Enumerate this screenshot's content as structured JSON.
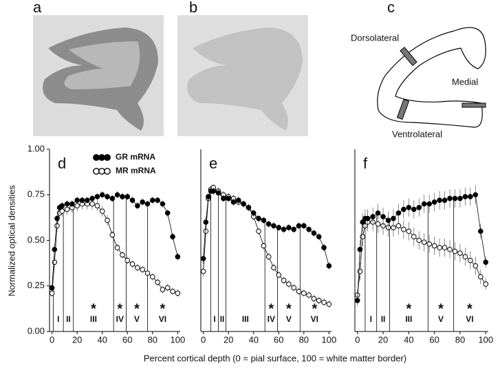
{
  "image_panels": [
    {
      "label": "a"
    },
    {
      "label": "b"
    }
  ],
  "diagram": {
    "label": "c",
    "regions": [
      "Dorsolateral",
      "Medial",
      "Ventrolateral"
    ]
  },
  "shared_axes": {
    "ylabel": "Normalized optical densities",
    "xlabel": "Percent cortical depth (0 = pial surface, 100 = white matter border)"
  },
  "chart_data": [
    {
      "type": "line",
      "label": "d",
      "x": [
        0,
        2,
        4,
        6,
        8,
        12,
        16,
        20,
        24,
        28,
        32,
        36,
        40,
        44,
        48,
        52,
        56,
        60,
        64,
        68,
        72,
        76,
        80,
        84,
        88,
        92,
        96,
        100
      ],
      "xlim": [
        -2,
        102
      ],
      "xticks": [
        0,
        20,
        40,
        60,
        80,
        100
      ],
      "ylim": [
        0,
        1
      ],
      "yticks": [
        {
          "value": 0,
          "label": "0.00"
        },
        {
          "value": 0.25,
          "label": "0.25"
        },
        {
          "value": 0.5,
          "label": "0.50"
        },
        {
          "value": 0.75,
          "label": "0.75"
        },
        {
          "value": 1,
          "label": "1.00"
        }
      ],
      "series": [
        {
          "name": "MR mRNA",
          "color": "#000000",
          "marker": "open",
          "values": [
            0.21,
            0.38,
            0.58,
            0.65,
            0.66,
            0.67,
            0.68,
            0.69,
            0.7,
            0.7,
            0.7,
            0.69,
            0.66,
            0.61,
            0.53,
            0.46,
            0.42,
            0.39,
            0.37,
            0.35,
            0.34,
            0.32,
            0.3,
            0.27,
            0.23,
            0.24,
            0.22,
            0.21
          ],
          "errors": [
            0.02,
            0.03,
            0.03,
            0.03,
            0.03,
            0.03,
            0.03,
            0.03,
            0.03,
            0.03,
            0.03,
            0.03,
            0.03,
            0.03,
            0.02,
            0.02,
            0.02,
            0.02,
            0.02,
            0.02,
            0.02,
            0.02,
            0.02,
            0.02,
            0.02,
            0.02,
            0.02,
            0.02
          ]
        },
        {
          "name": "GR mRNA",
          "color": "#000000",
          "marker": "filled",
          "values": [
            0.24,
            0.45,
            0.62,
            0.68,
            0.69,
            0.7,
            0.7,
            0.72,
            0.72,
            0.72,
            0.73,
            0.74,
            0.75,
            0.74,
            0.73,
            0.75,
            0.74,
            0.74,
            0.72,
            0.69,
            0.71,
            0.7,
            0.72,
            0.72,
            0.7,
            0.65,
            0.52,
            0.41
          ],
          "errors": [
            0.02,
            0.03,
            0.02,
            0.02,
            0.02,
            0.02,
            0.02,
            0.02,
            0.02,
            0.02,
            0.02,
            0.02,
            0.02,
            0.02,
            0.02,
            0.02,
            0.02,
            0.02,
            0.02,
            0.02,
            0.02,
            0.02,
            0.02,
            0.02,
            0.02,
            0.02,
            0.02,
            0.02
          ]
        }
      ],
      "layer_boundaries": [
        1,
        9,
        17,
        49,
        59,
        76
      ],
      "layers": [
        {
          "label": "I"
        },
        {
          "label": "II"
        },
        {
          "label": "III",
          "marker": "*"
        },
        {
          "label": "IV",
          "marker": "*"
        },
        {
          "label": "V",
          "marker": "*"
        },
        {
          "label": "VI",
          "marker": "*"
        }
      ]
    },
    {
      "type": "line",
      "label": "e",
      "x": [
        0,
        2,
        4,
        6,
        8,
        12,
        16,
        20,
        24,
        28,
        32,
        36,
        40,
        44,
        48,
        52,
        56,
        60,
        64,
        68,
        72,
        76,
        80,
        84,
        88,
        92,
        96,
        100
      ],
      "xlim": [
        -2,
        102
      ],
      "xticks": [
        0,
        20,
        40,
        60,
        80,
        100
      ],
      "ylim": [
        0,
        1
      ],
      "series": [
        {
          "color": "#000000",
          "marker": "open",
          "values": [
            0.33,
            0.55,
            0.73,
            0.78,
            0.79,
            0.77,
            0.75,
            0.74,
            0.73,
            0.71,
            0.7,
            0.68,
            0.63,
            0.55,
            0.47,
            0.41,
            0.35,
            0.31,
            0.28,
            0.26,
            0.24,
            0.22,
            0.21,
            0.2,
            0.18,
            0.17,
            0.16,
            0.15
          ],
          "errors": [
            0.03,
            0.03,
            0.02,
            0.02,
            0.02,
            0.02,
            0.02,
            0.02,
            0.02,
            0.02,
            0.02,
            0.02,
            0.02,
            0.02,
            0.02,
            0.02,
            0.02,
            0.02,
            0.02,
            0.02,
            0.02,
            0.02,
            0.02,
            0.02,
            0.02,
            0.02,
            0.02,
            0.02
          ]
        },
        {
          "color": "#000000",
          "marker": "filled",
          "values": [
            0.4,
            0.6,
            0.74,
            0.77,
            0.77,
            0.76,
            0.73,
            0.73,
            0.71,
            0.72,
            0.7,
            0.68,
            0.65,
            0.62,
            0.61,
            0.59,
            0.58,
            0.57,
            0.56,
            0.57,
            0.56,
            0.58,
            0.58,
            0.56,
            0.54,
            0.52,
            0.46,
            0.36
          ],
          "errors": [
            0.03,
            0.03,
            0.02,
            0.02,
            0.02,
            0.02,
            0.02,
            0.02,
            0.02,
            0.02,
            0.02,
            0.02,
            0.02,
            0.02,
            0.02,
            0.02,
            0.02,
            0.02,
            0.02,
            0.02,
            0.02,
            0.02,
            0.02,
            0.02,
            0.02,
            0.02,
            0.02,
            0.02
          ]
        }
      ],
      "layer_boundaries": [
        6,
        12,
        18,
        49,
        59,
        77
      ],
      "layers": [
        {
          "label": "I"
        },
        {
          "label": "II"
        },
        {
          "label": "III"
        },
        {
          "label": "IV",
          "marker": "*"
        },
        {
          "label": "V",
          "marker": "*"
        },
        {
          "label": "VI",
          "marker": "*"
        }
      ]
    },
    {
      "type": "line",
      "label": "f",
      "x": [
        0,
        2,
        4,
        6,
        8,
        12,
        16,
        20,
        24,
        28,
        32,
        36,
        40,
        44,
        48,
        52,
        56,
        60,
        64,
        68,
        72,
        76,
        80,
        84,
        88,
        92,
        96,
        100
      ],
      "xlim": [
        -2,
        102
      ],
      "xticks": [
        0,
        20,
        40,
        60,
        80,
        100
      ],
      "ylim": [
        0,
        1
      ],
      "series": [
        {
          "color": "#000000",
          "marker": "open",
          "values": [
            0.2,
            0.33,
            0.52,
            0.58,
            0.6,
            0.6,
            0.59,
            0.58,
            0.57,
            0.57,
            0.58,
            0.56,
            0.55,
            0.52,
            0.5,
            0.49,
            0.48,
            0.47,
            0.46,
            0.46,
            0.45,
            0.44,
            0.43,
            0.41,
            0.39,
            0.36,
            0.3,
            0.26
          ],
          "errors": [
            0.03,
            0.05,
            0.05,
            0.05,
            0.05,
            0.05,
            0.05,
            0.05,
            0.05,
            0.05,
            0.05,
            0.05,
            0.05,
            0.05,
            0.05,
            0.05,
            0.05,
            0.05,
            0.05,
            0.05,
            0.05,
            0.05,
            0.05,
            0.05,
            0.05,
            0.05,
            0.04,
            0.03
          ]
        },
        {
          "color": "#000000",
          "marker": "filled",
          "values": [
            0.17,
            0.45,
            0.6,
            0.62,
            0.62,
            0.63,
            0.65,
            0.63,
            0.61,
            0.62,
            0.65,
            0.67,
            0.68,
            0.67,
            0.68,
            0.7,
            0.7,
            0.71,
            0.72,
            0.72,
            0.73,
            0.73,
            0.73,
            0.74,
            0.74,
            0.75,
            0.55,
            0.38
          ],
          "errors": [
            0.03,
            0.05,
            0.05,
            0.05,
            0.05,
            0.05,
            0.05,
            0.05,
            0.05,
            0.05,
            0.05,
            0.05,
            0.05,
            0.05,
            0.05,
            0.05,
            0.05,
            0.05,
            0.05,
            0.05,
            0.05,
            0.05,
            0.05,
            0.05,
            0.05,
            0.05,
            0.04,
            0.03
          ]
        }
      ],
      "layer_boundaries": [
        6,
        15,
        25,
        55,
        75
      ],
      "layers": [
        {
          "label": "I"
        },
        {
          "label": "II"
        },
        {
          "label": "III",
          "marker": "*"
        },
        {
          "label": "V",
          "marker": "*"
        },
        {
          "label": "VI",
          "marker": "*"
        }
      ]
    }
  ]
}
